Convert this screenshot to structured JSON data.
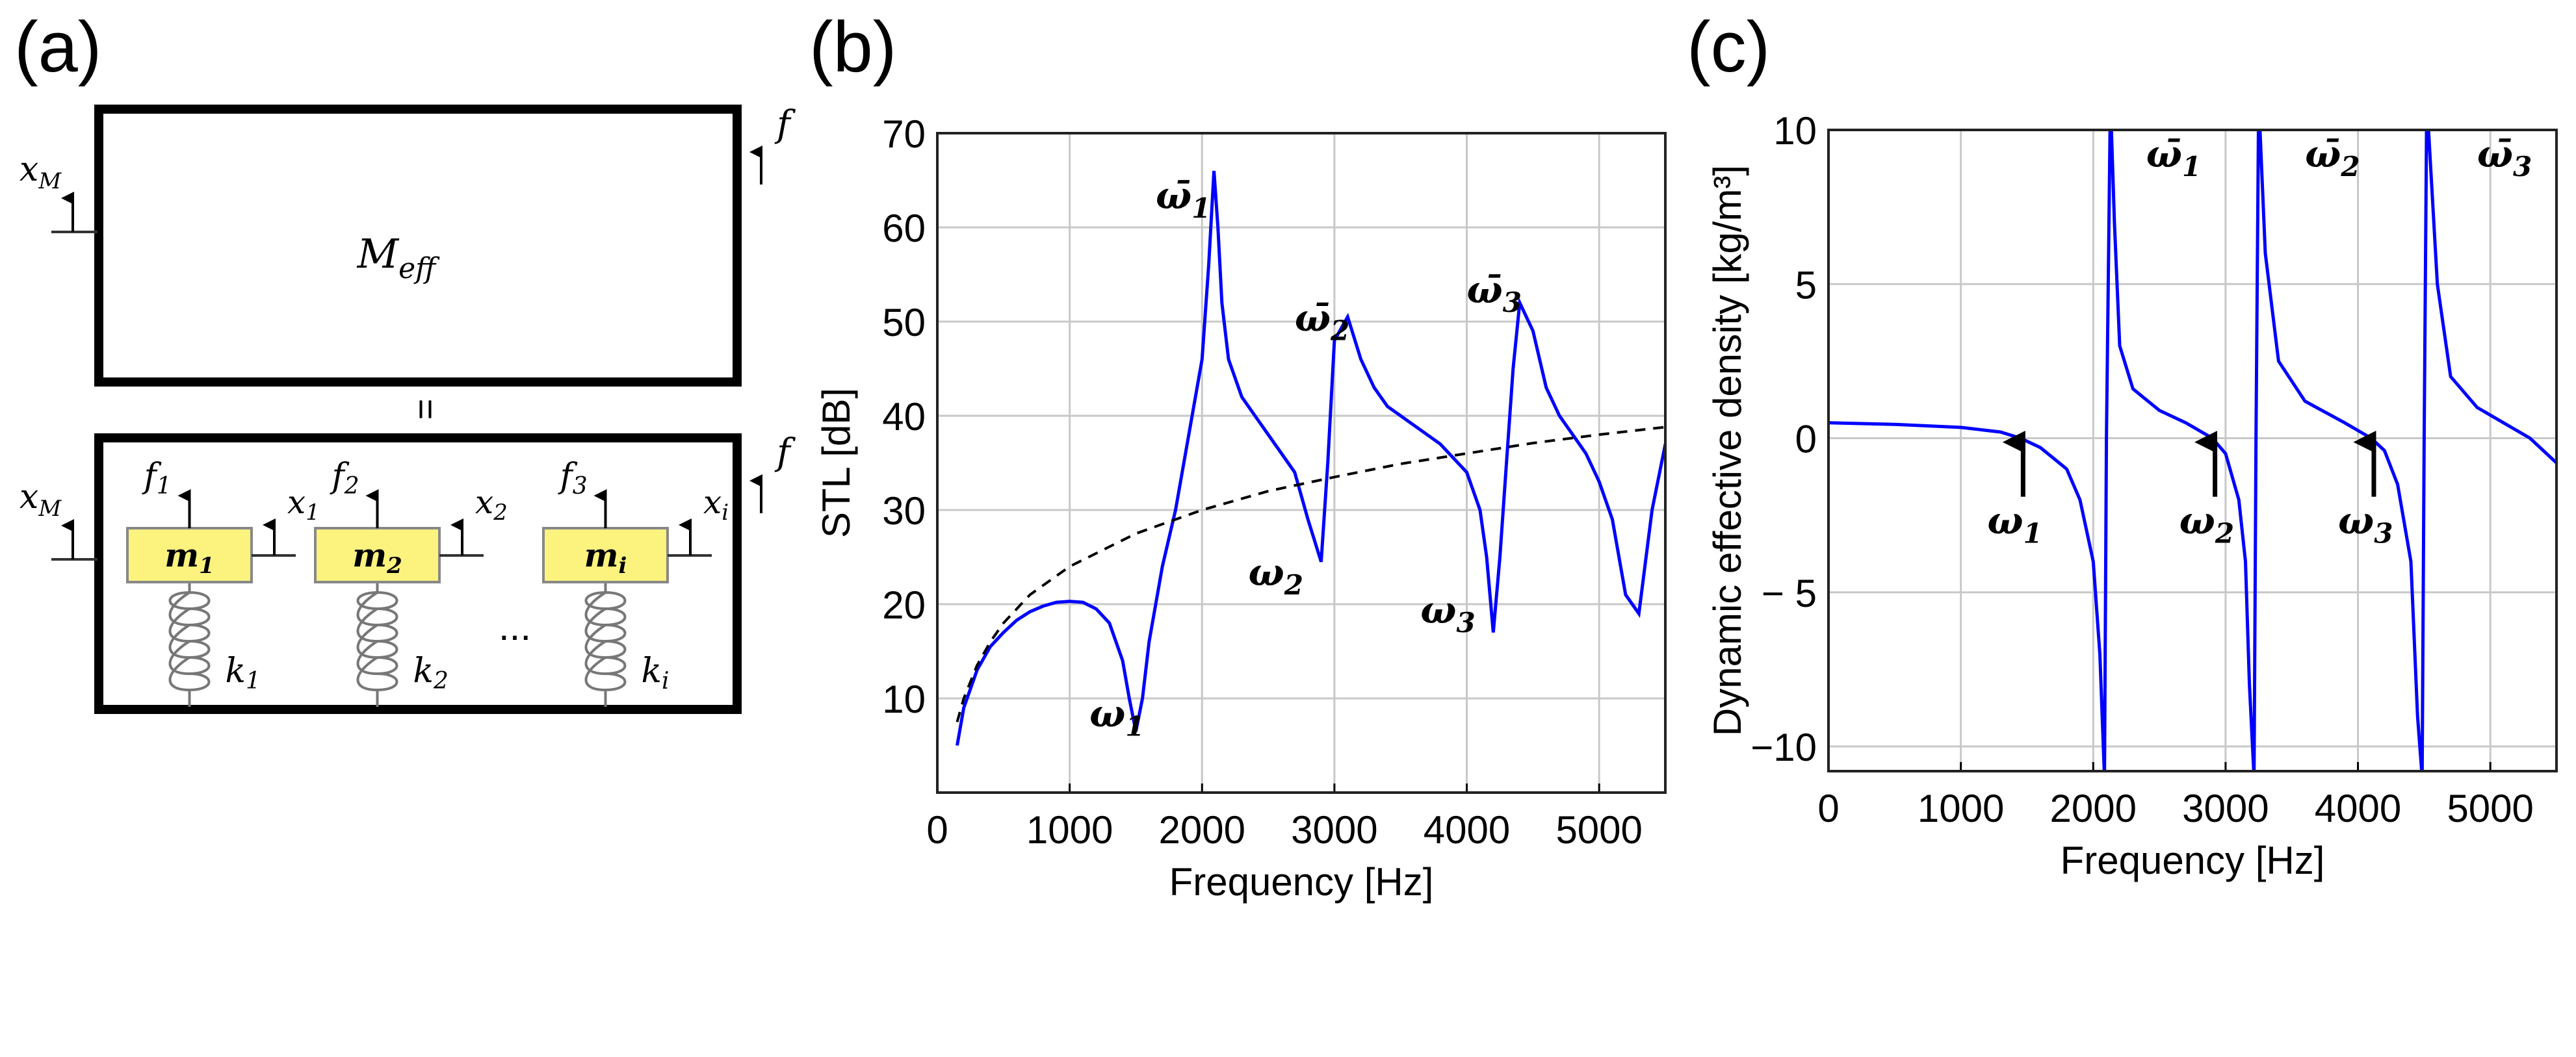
{
  "panel_labels": {
    "a": "(a)",
    "b": "(b)",
    "c": "(c)"
  },
  "diagram": {
    "top": {
      "mass_label": {
        "base": "M",
        "sub": "eff"
      },
      "x_label": {
        "base": "x",
        "sub": "M"
      },
      "f_label": "f"
    },
    "equals": "=",
    "bottom": {
      "x_label": {
        "base": "x",
        "sub": "M"
      },
      "f_label": "f",
      "ellipsis": "...",
      "resonators": [
        {
          "mass": {
            "base": "m",
            "sub": "1"
          },
          "force": {
            "base": "f",
            "sub": "1"
          },
          "disp": {
            "base": "x",
            "sub": "1"
          },
          "spring": {
            "base": "k",
            "sub": "1"
          }
        },
        {
          "mass": {
            "base": "m",
            "sub": "2"
          },
          "force": {
            "base": "f",
            "sub": "2"
          },
          "disp": {
            "base": "x",
            "sub": "2"
          },
          "spring": {
            "base": "k",
            "sub": "2"
          }
        },
        {
          "mass": {
            "base": "m",
            "sub": "i"
          },
          "force": {
            "base": "f",
            "sub": "3"
          },
          "disp": {
            "base": "x",
            "sub": "i"
          },
          "spring": {
            "base": "k",
            "sub": "i"
          }
        }
      ],
      "mass_fill": "#fcf27e"
    }
  },
  "chart_data": [
    {
      "type": "line",
      "panel": "b",
      "xlabel": "Frequency [Hz]",
      "ylabel": "STL  [dB]",
      "xlim": [
        0,
        5500
      ],
      "ylim": [
        0,
        70
      ],
      "xticks": [
        0,
        1000,
        2000,
        3000,
        4000,
        5000
      ],
      "yticks": [
        10,
        20,
        30,
        40,
        50,
        60,
        70
      ],
      "grid": true,
      "series": [
        {
          "style": "solid",
          "color": "#0000ff",
          "x": [
            150,
            200,
            300,
            400,
            500,
            600,
            700,
            800,
            900,
            1000,
            1100,
            1200,
            1300,
            1400,
            1450,
            1500,
            1550,
            1600,
            1700,
            1800,
            1900,
            2000,
            2050,
            2090,
            2120,
            2150,
            2200,
            2300,
            2400,
            2500,
            2600,
            2700,
            2800,
            2900,
            2950,
            3000,
            3100,
            3200,
            3300,
            3400,
            3600,
            3800,
            4000,
            4100,
            4150,
            4200,
            4250,
            4300,
            4350,
            4400,
            4500,
            4600,
            4700,
            4800,
            4900,
            5000,
            5100,
            5200,
            5300,
            5400,
            5500
          ],
          "y": [
            5,
            9,
            13,
            15.5,
            17,
            18.3,
            19.2,
            19.8,
            20.2,
            20.3,
            20.2,
            19.5,
            18,
            14,
            10,
            6.5,
            10,
            16,
            24,
            30,
            38,
            46,
            56,
            66,
            60,
            52,
            46,
            42,
            40,
            38,
            36,
            34,
            29,
            24.5,
            35,
            48,
            50.5,
            46,
            43,
            41,
            39,
            37,
            34,
            30,
            25,
            17,
            25,
            35,
            45,
            52,
            49,
            43,
            40,
            38,
            36,
            33,
            29,
            21,
            19,
            30,
            37
          ]
        },
        {
          "style": "dashed",
          "color": "#000000",
          "x": [
            150,
            200,
            300,
            400,
            500,
            700,
            1000,
            1500,
            2000,
            2500,
            3000,
            3500,
            4000,
            4500,
            5000,
            5500
          ],
          "y": [
            7.5,
            10,
            13.5,
            16,
            18,
            21,
            24,
            27.5,
            30,
            32,
            33.5,
            34.9,
            36,
            37.1,
            38,
            38.8
          ]
        }
      ],
      "annotations": [
        {
          "text": "ω̄",
          "sub": "1",
          "x": 1650,
          "y": 62
        },
        {
          "text": "ω̄",
          "sub": "2",
          "x": 2700,
          "y": 49
        },
        {
          "text": "ω̄",
          "sub": "3",
          "x": 4000,
          "y": 52
        },
        {
          "text": "ω",
          "sub": "1",
          "x": 1150,
          "y": 7
        },
        {
          "text": "ω",
          "sub": "2",
          "x": 2350,
          "y": 22
        },
        {
          "text": "ω",
          "sub": "3",
          "x": 3650,
          "y": 18
        }
      ]
    },
    {
      "type": "line",
      "panel": "c",
      "xlabel": "Frequency [Hz]",
      "ylabel": "Dynamic effective density [kg/m³]",
      "xlim": [
        0,
        5500
      ],
      "ylim": [
        -10.8,
        10
      ],
      "xticks": [
        0,
        1000,
        2000,
        3000,
        4000,
        5000
      ],
      "yticks": [
        -10,
        -5,
        0,
        5,
        10
      ],
      "ytick_labels": [
        "−10",
        "− 5",
        "0",
        "5",
        "10"
      ],
      "grid": true,
      "series": [
        {
          "style": "solid",
          "color": "#0000ff",
          "x": [
            0,
            500,
            1000,
            1300,
            1450,
            1600,
            1800,
            1900,
            2000,
            2050,
            2085,
            2100,
            2130,
            2160,
            2200,
            2300,
            2500,
            2700,
            2900,
            3000,
            3100,
            3150,
            3180,
            3215,
            3230,
            3250,
            3300,
            3400,
            3600,
            3900,
            4100,
            4200,
            4300,
            4400,
            4450,
            4485,
            4500,
            4520,
            4600,
            4700,
            4900,
            5100,
            5300,
            5500
          ],
          "y": [
            0.5,
            0.45,
            0.35,
            0.2,
            0,
            -0.3,
            -1,
            -2,
            -4,
            -7,
            -11,
            0,
            11,
            7,
            3,
            1.6,
            0.9,
            0.5,
            0,
            -0.5,
            -2,
            -4,
            -8,
            -11,
            0,
            11,
            6,
            2.5,
            1.2,
            0.5,
            0,
            -0.4,
            -1.5,
            -4,
            -9,
            -11,
            0,
            11,
            5,
            2,
            1,
            0.5,
            0,
            -0.8
          ]
        }
      ],
      "arrows": [
        {
          "text": "ω",
          "sub": "1",
          "x": 1470
        },
        {
          "text": "ω",
          "sub": "2",
          "x": 2920
        },
        {
          "text": "ω",
          "sub": "3",
          "x": 4120
        }
      ],
      "annotations": [
        {
          "text": "ω̄",
          "sub": "1",
          "x": 2400,
          "y": 8.8
        },
        {
          "text": "ω̄",
          "sub": "2",
          "x": 3600,
          "y": 8.8
        },
        {
          "text": "ω̄",
          "sub": "3",
          "x": 4900,
          "y": 8.8
        }
      ]
    }
  ]
}
